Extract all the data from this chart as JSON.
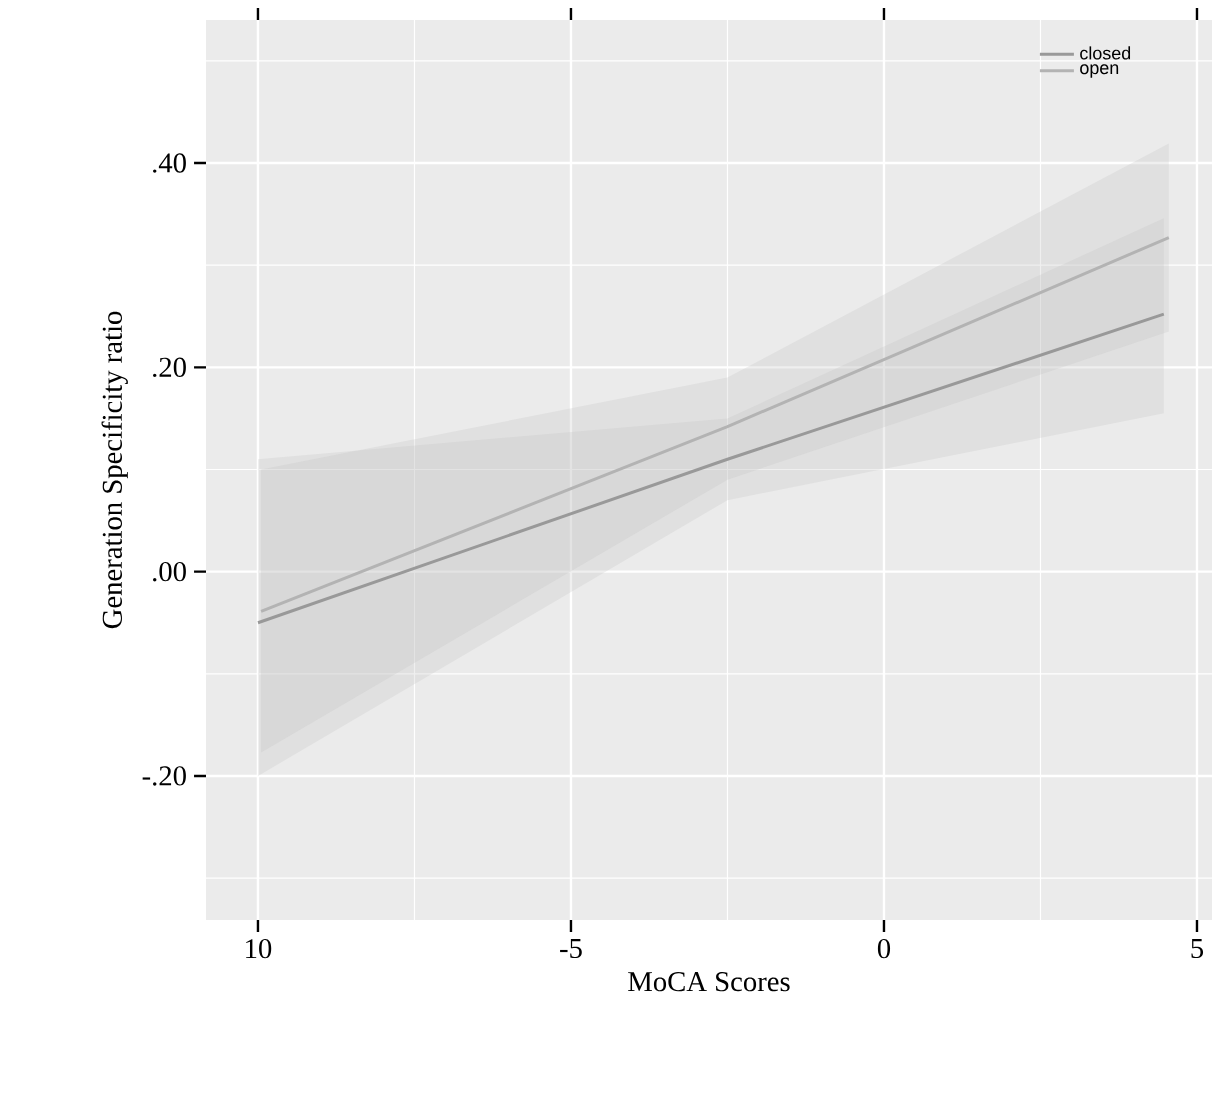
{
  "chart_data": {
    "type": "line",
    "xlabel": "MoCA Scores",
    "ylabel": "Generation Specificity ratio",
    "xlim": [
      -10.83,
      5.24
    ],
    "ylim": [
      -0.341,
      0.54
    ],
    "xticks": [
      {
        "value": -10,
        "label": "10"
      },
      -5,
      0,
      5
    ],
    "yticks": [
      {
        "value": -0.2,
        "label": "-.20"
      },
      {
        "value": 0,
        "label": ".00"
      },
      {
        "value": 0.2,
        "label": ".20"
      },
      {
        "value": 0.4,
        "label": ".40"
      }
    ],
    "grid": true,
    "legend": "top right",
    "series": [
      {
        "name": "closed",
        "color": "#999999",
        "x": [
          -10,
          -2.5,
          4.47
        ],
        "values": [
          -0.05,
          0.11,
          0.252
        ],
        "lower": [
          -0.2,
          0.07,
          0.155
        ],
        "upper": [
          0.11,
          0.15,
          0.346
        ]
      },
      {
        "name": "open",
        "color": "#b3b3b3",
        "x": [
          -9.95,
          -2.5,
          4.55
        ],
        "values": [
          -0.039,
          0.142,
          0.327
        ],
        "lower": [
          -0.177,
          0.09,
          0.235
        ],
        "upper": [
          0.1,
          0.19,
          0.419
        ]
      }
    ]
  }
}
